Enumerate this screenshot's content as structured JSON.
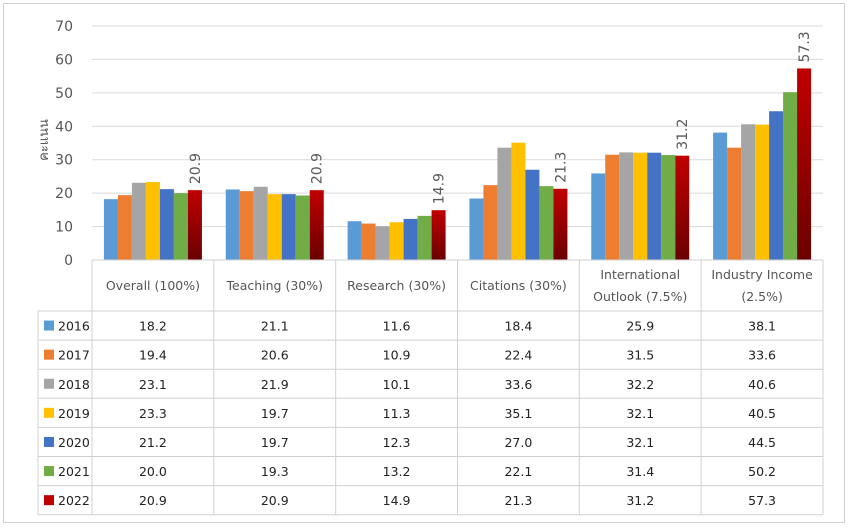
{
  "chart_data": {
    "type": "bar",
    "ylabel": "คะแนน",
    "ylim": [
      0,
      70
    ],
    "yticks": [
      0,
      10,
      20,
      30,
      40,
      50,
      60,
      70
    ],
    "grid": true,
    "legend": "data-table-left",
    "categories": [
      [
        "Overall (100%)"
      ],
      [
        "Teaching (30%)"
      ],
      [
        "Research (30%)"
      ],
      [
        "Citations (30%)"
      ],
      [
        "International",
        "Outlook (7.5%)"
      ],
      [
        "Industry Income",
        "(2.5%)"
      ]
    ],
    "series": [
      {
        "name": "2016",
        "color": "#5B9BD5",
        "values": [
          18.2,
          21.1,
          11.6,
          18.4,
          25.9,
          38.1
        ]
      },
      {
        "name": "2017",
        "color": "#ED7D31",
        "values": [
          19.4,
          20.6,
          10.9,
          22.4,
          31.5,
          33.6
        ]
      },
      {
        "name": "2018",
        "color": "#A5A5A5",
        "values": [
          23.1,
          21.9,
          10.1,
          33.6,
          32.2,
          40.6
        ]
      },
      {
        "name": "2019",
        "color": "#FFC000",
        "values": [
          23.3,
          19.7,
          11.3,
          35.1,
          32.1,
          40.5
        ]
      },
      {
        "name": "2020",
        "color": "#4472C4",
        "values": [
          21.2,
          19.7,
          12.3,
          27.0,
          32.1,
          44.5
        ]
      },
      {
        "name": "2021",
        "color": "#70AD47",
        "values": [
          20.0,
          19.3,
          13.2,
          22.1,
          31.4,
          50.2
        ]
      },
      {
        "name": "2022",
        "color": "#C00000",
        "gradient_to": "#6B0000",
        "values": [
          20.9,
          20.9,
          14.9,
          21.3,
          31.2,
          57.3
        ]
      }
    ],
    "data_labels_series": "2022",
    "table_values": [
      [
        "18.2",
        "21.1",
        "11.6",
        "18.4",
        "25.9",
        "38.1"
      ],
      [
        "19.4",
        "20.6",
        "10.9",
        "22.4",
        "31.5",
        "33.6"
      ],
      [
        "23.1",
        "21.9",
        "10.1",
        "33.6",
        "32.2",
        "40.6"
      ],
      [
        "23.3",
        "19.7",
        "11.3",
        "35.1",
        "32.1",
        "40.5"
      ],
      [
        "21.2",
        "19.7",
        "12.3",
        "27.0",
        "32.1",
        "44.5"
      ],
      [
        "20.0",
        "19.3",
        "13.2",
        "22.1",
        "31.4",
        "50.2"
      ],
      [
        "20.9",
        "20.9",
        "14.9",
        "21.3",
        "31.2",
        "57.3"
      ]
    ]
  }
}
